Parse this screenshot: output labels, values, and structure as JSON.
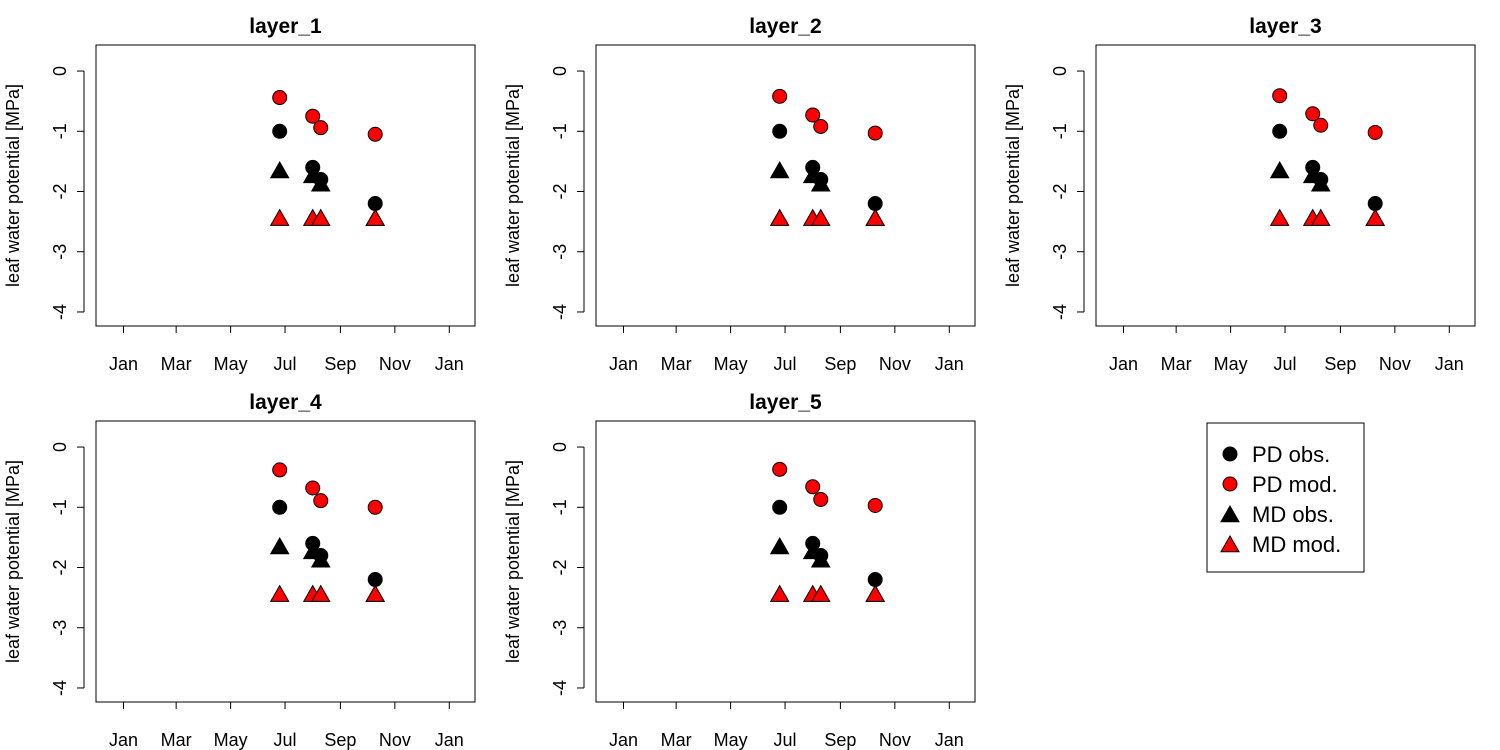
{
  "chart_data": {
    "type": "scatter",
    "panels": [
      {
        "title": "layer_1",
        "ylabel": "leaf water potential [MPa]",
        "series": [
          {
            "name": "PD obs.",
            "x": [
              "2019-06-25",
              "2019-08-01",
              "2019-08-10",
              "2019-10-10"
            ],
            "values": [
              -1.0,
              -1.6,
              -1.8,
              -2.2
            ]
          },
          {
            "name": "PD mod.",
            "x": [
              "2019-06-25",
              "2019-08-01",
              "2019-08-10",
              "2019-10-10"
            ],
            "values": [
              -0.44,
              -0.75,
              -0.94,
              -1.05
            ]
          },
          {
            "name": "MD obs.",
            "x": [
              "2019-06-25",
              "2019-08-01",
              "2019-08-10",
              "2019-10-10"
            ],
            "values": [
              -1.66,
              -1.74,
              -1.88,
              -2.45
            ]
          },
          {
            "name": "MD mod.",
            "x": [
              "2019-06-25",
              "2019-08-01",
              "2019-08-10",
              "2019-10-10"
            ],
            "values": [
              -2.45,
              -2.45,
              -2.45,
              -2.45
            ]
          }
        ]
      },
      {
        "title": "layer_2",
        "ylabel": "leaf water potential [MPa]",
        "series": [
          {
            "name": "PD obs.",
            "x": [
              "2019-06-25",
              "2019-08-01",
              "2019-08-10",
              "2019-10-10"
            ],
            "values": [
              -1.0,
              -1.6,
              -1.8,
              -2.2
            ]
          },
          {
            "name": "PD mod.",
            "x": [
              "2019-06-25",
              "2019-08-01",
              "2019-08-10",
              "2019-10-10"
            ],
            "values": [
              -0.42,
              -0.73,
              -0.92,
              -1.03
            ]
          },
          {
            "name": "MD obs.",
            "x": [
              "2019-06-25",
              "2019-08-01",
              "2019-08-10",
              "2019-10-10"
            ],
            "values": [
              -1.66,
              -1.74,
              -1.88,
              -2.45
            ]
          },
          {
            "name": "MD mod.",
            "x": [
              "2019-06-25",
              "2019-08-01",
              "2019-08-10",
              "2019-10-10"
            ],
            "values": [
              -2.45,
              -2.45,
              -2.45,
              -2.45
            ]
          }
        ]
      },
      {
        "title": "layer_3",
        "ylabel": "leaf water potential [MPa]",
        "series": [
          {
            "name": "PD obs.",
            "x": [
              "2019-06-25",
              "2019-08-01",
              "2019-08-10",
              "2019-10-10"
            ],
            "values": [
              -1.0,
              -1.6,
              -1.8,
              -2.2
            ]
          },
          {
            "name": "PD mod.",
            "x": [
              "2019-06-25",
              "2019-08-01",
              "2019-08-10",
              "2019-10-10"
            ],
            "values": [
              -0.41,
              -0.71,
              -0.9,
              -1.02
            ]
          },
          {
            "name": "MD obs.",
            "x": [
              "2019-06-25",
              "2019-08-01",
              "2019-08-10",
              "2019-10-10"
            ],
            "values": [
              -1.66,
              -1.74,
              -1.88,
              -2.45
            ]
          },
          {
            "name": "MD mod.",
            "x": [
              "2019-06-25",
              "2019-08-01",
              "2019-08-10",
              "2019-10-10"
            ],
            "values": [
              -2.45,
              -2.45,
              -2.45,
              -2.45
            ]
          }
        ]
      },
      {
        "title": "layer_4",
        "ylabel": "leaf water potential [MPa]",
        "series": [
          {
            "name": "PD obs.",
            "x": [
              "2019-06-25",
              "2019-08-01",
              "2019-08-10",
              "2019-10-10"
            ],
            "values": [
              -1.0,
              -1.6,
              -1.8,
              -2.2
            ]
          },
          {
            "name": "PD mod.",
            "x": [
              "2019-06-25",
              "2019-08-01",
              "2019-08-10",
              "2019-10-10"
            ],
            "values": [
              -0.38,
              -0.68,
              -0.89,
              -1.0
            ]
          },
          {
            "name": "MD obs.",
            "x": [
              "2019-06-25",
              "2019-08-01",
              "2019-08-10",
              "2019-10-10"
            ],
            "values": [
              -1.66,
              -1.74,
              -1.88,
              -2.45
            ]
          },
          {
            "name": "MD mod.",
            "x": [
              "2019-06-25",
              "2019-08-01",
              "2019-08-10",
              "2019-10-10"
            ],
            "values": [
              -2.45,
              -2.45,
              -2.45,
              -2.45
            ]
          }
        ]
      },
      {
        "title": "layer_5",
        "ylabel": "leaf water potential [MPa]",
        "series": [
          {
            "name": "PD obs.",
            "x": [
              "2019-06-25",
              "2019-08-01",
              "2019-08-10",
              "2019-10-10"
            ],
            "values": [
              -1.0,
              -1.6,
              -1.8,
              -2.2
            ]
          },
          {
            "name": "PD mod.",
            "x": [
              "2019-06-25",
              "2019-08-01",
              "2019-08-10",
              "2019-10-10"
            ],
            "values": [
              -0.37,
              -0.66,
              -0.87,
              -0.97
            ]
          },
          {
            "name": "MD obs.",
            "x": [
              "2019-06-25",
              "2019-08-01",
              "2019-08-10",
              "2019-10-10"
            ],
            "values": [
              -1.66,
              -1.74,
              -1.88,
              -2.45
            ]
          },
          {
            "name": "MD mod.",
            "x": [
              "2019-06-25",
              "2019-08-01",
              "2019-08-10",
              "2019-10-10"
            ],
            "values": [
              -2.45,
              -2.45,
              -2.45,
              -2.45
            ]
          }
        ]
      }
    ],
    "x_axis": {
      "ticks": [
        "2019-01-01",
        "2019-03-01",
        "2019-05-01",
        "2019-07-01",
        "2019-09-01",
        "2019-11-01",
        "2020-01-01"
      ],
      "tick_labels": [
        "Jan",
        "Mar",
        "May",
        "Jul",
        "Sep",
        "Nov",
        "Jan"
      ],
      "range": [
        "2018-12-18",
        "2020-01-13"
      ]
    },
    "y_axis": {
      "ticks": [
        0,
        -1,
        -2,
        -3,
        -4
      ],
      "tick_labels": [
        "0",
        "-1",
        "-2",
        "-3",
        "-4"
      ],
      "range": [
        -4.15,
        0.2
      ]
    },
    "legend": {
      "placement": "bottom-right panel area",
      "entries": [
        {
          "label": "PD obs.",
          "marker": "circle",
          "fill": "#000000"
        },
        {
          "label": "PD mod.",
          "marker": "circle",
          "fill": "#ff0000"
        },
        {
          "label": "MD obs.",
          "marker": "triangle",
          "fill": "#000000"
        },
        {
          "label": "MD mod.",
          "marker": "triangle",
          "fill": "#ff0000"
        }
      ]
    },
    "grid": false,
    "colors": {
      "obs": "#000000",
      "mod": "#ff0000",
      "axis": "#000000"
    }
  }
}
